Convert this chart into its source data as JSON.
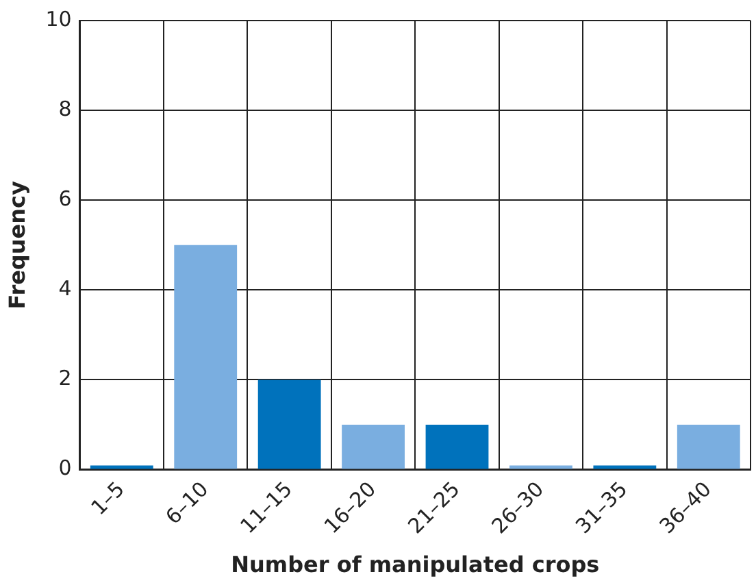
{
  "chart_data": {
    "type": "bar",
    "xlabel": "Number of manipulated crops",
    "ylabel": "Frequency",
    "categories": [
      "1–5",
      "6–10",
      "11–15",
      "16–20",
      "21–25",
      "26–30",
      "31–35",
      "36–40"
    ],
    "values": [
      0,
      5,
      2,
      1,
      1,
      0,
      0,
      1
    ],
    "colors": [
      "#0072bc",
      "#7aaee0",
      "#0072bc",
      "#7aaee0",
      "#0072bc",
      "#7aaee0",
      "#0072bc",
      "#7aaee0"
    ],
    "ylim": [
      0,
      10
    ],
    "yticks": [
      0,
      2,
      4,
      6,
      8,
      10
    ],
    "grid": true,
    "legend": false
  }
}
